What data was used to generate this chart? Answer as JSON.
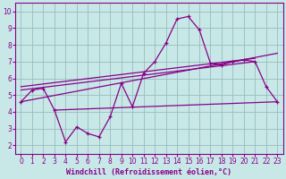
{
  "xlabel": "Windchill (Refroidissement éolien,°C)",
  "background_color": "#c8e8e8",
  "line_color": "#880088",
  "grid_color": "#99bbbb",
  "x_ticks": [
    0,
    1,
    2,
    3,
    4,
    5,
    6,
    7,
    8,
    9,
    10,
    11,
    12,
    13,
    14,
    15,
    16,
    17,
    18,
    19,
    20,
    21,
    22,
    23
  ],
  "y_ticks": [
    2,
    3,
    4,
    5,
    6,
    7,
    8,
    9,
    10
  ],
  "xlim": [
    -0.5,
    23.5
  ],
  "ylim": [
    1.5,
    10.5
  ],
  "series": {
    "line1_x": [
      0,
      1,
      2,
      3,
      4,
      5,
      6,
      7,
      8,
      9,
      10,
      11,
      12,
      13,
      14,
      15,
      16,
      17,
      18,
      19,
      20,
      21,
      22,
      23
    ],
    "line1_y": [
      4.6,
      5.3,
      5.4,
      4.1,
      2.2,
      3.1,
      2.7,
      2.5,
      3.7,
      5.7,
      4.3,
      6.3,
      7.0,
      8.1,
      9.55,
      9.7,
      8.9,
      6.9,
      6.8,
      7.0,
      7.1,
      7.0,
      5.5,
      4.6
    ],
    "line2_x": [
      0,
      23
    ],
    "line2_y": [
      4.6,
      7.5
    ],
    "line3_x": [
      0,
      21
    ],
    "line3_y": [
      5.5,
      7.2
    ],
    "line4_x": [
      0,
      21
    ],
    "line4_y": [
      5.3,
      7.0
    ],
    "line5_x": [
      3,
      23
    ],
    "line5_y": [
      4.1,
      4.6
    ]
  }
}
